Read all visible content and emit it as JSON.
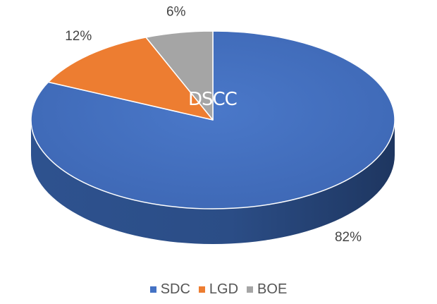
{
  "chart_data": {
    "type": "pie",
    "style": "3d",
    "categories": [
      "SDC",
      "LGD",
      "BOE"
    ],
    "values": [
      82,
      12,
      6
    ],
    "data_labels": [
      "82%",
      "12%",
      "6%"
    ],
    "colors": [
      "#4472C4",
      "#ED7D31",
      "#A5A5A5"
    ],
    "title": "",
    "watermark": "DSCC",
    "legend_position": "bottom"
  }
}
